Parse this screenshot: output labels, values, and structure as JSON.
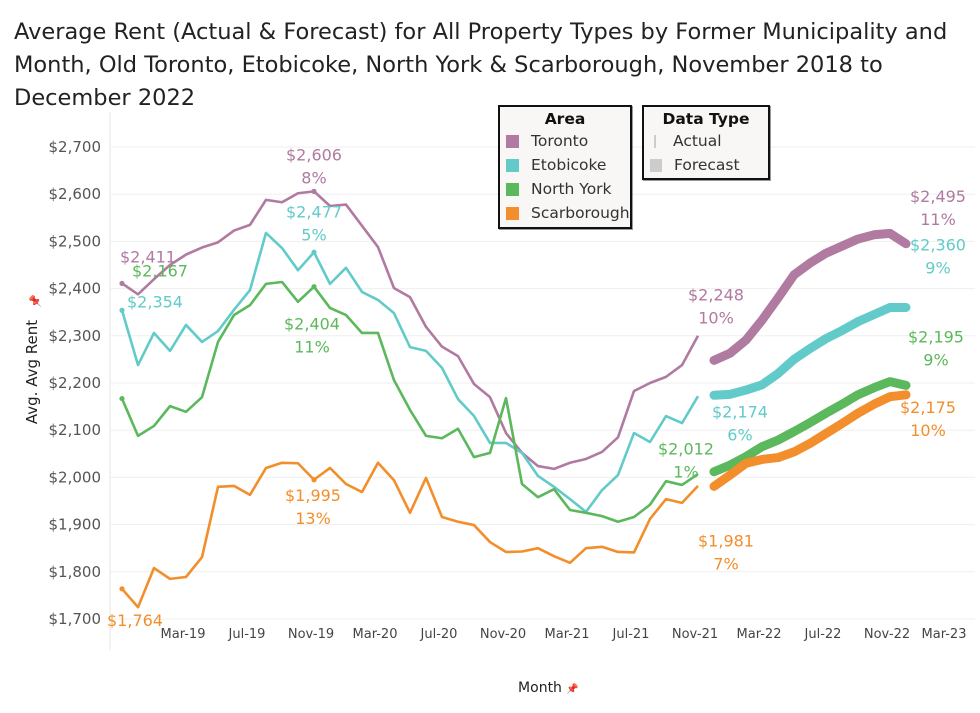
{
  "title": "Average Rent (Actual & Forecast) for All Property Types by Former Municipality and Month, Old Toronto, Etobicoke, North York & Scarborough, November 2018 to December 2022",
  "legend_area": {
    "title": "Area",
    "items": [
      {
        "label": "Toronto",
        "color": "#b07aa1"
      },
      {
        "label": "Etobicoke",
        "color": "#62cbc9"
      },
      {
        "label": "North York",
        "color": "#5cb85c"
      },
      {
        "label": "Scarborough",
        "color": "#f28e2b"
      }
    ]
  },
  "legend_type": {
    "title": "Data Type",
    "items": [
      {
        "label": "Actual",
        "icon": "thin-line-icon"
      },
      {
        "label": "Forecast",
        "icon": "thick-block-icon"
      }
    ]
  },
  "chart_data": {
    "type": "line",
    "title": "Average Rent (Actual & Forecast) for All Property Types by Former Municipality and Month, Old Toronto, Etobicoke, North York & Scarborough, November 2018 to December 2022",
    "xlabel": "Month",
    "ylabel": "Avg. Avg Rent",
    "ylim": [
      1700,
      2700
    ],
    "yticks": [
      "$1,700",
      "$1,800",
      "$1,900",
      "$2,000",
      "$2,100",
      "$2,200",
      "$2,300",
      "$2,400",
      "$2,500",
      "$2,600",
      "$2,700"
    ],
    "ytick_values": [
      1700,
      1800,
      1900,
      2000,
      2100,
      2200,
      2300,
      2400,
      2500,
      2600,
      2700
    ],
    "xticks": [
      "Mar-19",
      "Jul-19",
      "Nov-19",
      "Mar-20",
      "Jul-20",
      "Nov-20",
      "Mar-21",
      "Jul-21",
      "Nov-21",
      "Mar-22",
      "Jul-22",
      "Nov-22",
      "Mar-23"
    ],
    "x_start": "2018-11",
    "x_actual_end": "2021-11",
    "x_forecast_start": "2021-12",
    "x_end": "2022-12",
    "grid": "horizontal",
    "legend": "top-right",
    "series": [
      {
        "name": "Toronto",
        "color": "#b07aa1",
        "actual": [
          2411,
          2388,
          2420,
          2450,
          2472,
          2487,
          2498,
          2523,
          2535,
          2588,
          2583,
          2602,
          2606,
          2575,
          2578,
          2533,
          2488,
          2401,
          2382,
          2319,
          2277,
          2257,
          2198,
          2170,
          2094,
          2052,
          2024,
          2018,
          2031,
          2039,
          2054,
          2085,
          2183,
          2200,
          2213,
          2238,
          2300
        ],
        "forecast": [
          2248,
          2263,
          2291,
          2333,
          2380,
          2429,
          2454,
          2475,
          2490,
          2505,
          2514,
          2517,
          2495
        ]
      },
      {
        "name": "Etobicoke",
        "color": "#62cbc9",
        "actual": [
          2354,
          2238,
          2306,
          2268,
          2323,
          2287,
          2310,
          2355,
          2397,
          2518,
          2486,
          2439,
          2477,
          2410,
          2444,
          2393,
          2376,
          2348,
          2276,
          2268,
          2232,
          2166,
          2130,
          2073,
          2073,
          2052,
          2003,
          1980,
          1954,
          1927,
          1973,
          2005,
          2094,
          2075,
          2130,
          2115,
          2172
        ],
        "forecast": [
          2174,
          2176,
          2185,
          2196,
          2220,
          2250,
          2273,
          2294,
          2311,
          2330,
          2345,
          2360,
          2360
        ]
      },
      {
        "name": "North York",
        "color": "#5cb85c",
        "actual": [
          2167,
          2088,
          2109,
          2151,
          2139,
          2170,
          2287,
          2344,
          2365,
          2410,
          2414,
          2372,
          2404,
          2359,
          2344,
          2306,
          2306,
          2206,
          2143,
          2088,
          2083,
          2103,
          2043,
          2052,
          2168,
          1986,
          1958,
          1975,
          1931,
          1925,
          1918,
          1906,
          1916,
          1942,
          1992,
          1984,
          2007
        ],
        "forecast": [
          2012,
          2026,
          2044,
          2065,
          2079,
          2097,
          2116,
          2136,
          2155,
          2175,
          2190,
          2203,
          2195
        ]
      },
      {
        "name": "Scarborough",
        "color": "#f28e2b",
        "actual": [
          1764,
          1725,
          1808,
          1785,
          1789,
          1831,
          1980,
          1982,
          1963,
          2020,
          2031,
          2030,
          1995,
          2020,
          1986,
          1969,
          2031,
          1994,
          1925,
          1999,
          1916,
          1906,
          1899,
          1863,
          1842,
          1843,
          1850,
          1833,
          1819,
          1850,
          1853,
          1842,
          1841,
          1912,
          1954,
          1946,
          1982
        ],
        "forecast": [
          1981,
          2005,
          2030,
          2038,
          2042,
          2054,
          2072,
          2093,
          2114,
          2136,
          2155,
          2171,
          2175
        ]
      }
    ],
    "annotations": [
      {
        "series": 0,
        "month": "2018-11",
        "value": "$2,411",
        "pct": ""
      },
      {
        "series": 1,
        "month": "2018-11",
        "value": "$2,354",
        "pct": ""
      },
      {
        "series": 2,
        "month": "2018-11",
        "value": "$2,167",
        "pct": ""
      },
      {
        "series": 3,
        "month": "2018-11",
        "value": "$1,764",
        "pct": ""
      },
      {
        "series": 0,
        "month": "2019-11",
        "value": "$2,606",
        "pct": "8%"
      },
      {
        "series": 1,
        "month": "2019-11",
        "value": "$2,477",
        "pct": "5%"
      },
      {
        "series": 2,
        "month": "2019-11",
        "value": "$2,404",
        "pct": "11%"
      },
      {
        "series": 3,
        "month": "2019-11",
        "value": "$1,995",
        "pct": "13%"
      },
      {
        "series": 0,
        "month": "2021-12",
        "value": "$2,248",
        "pct": "10%"
      },
      {
        "series": 1,
        "month": "2021-12",
        "value": "$2,174",
        "pct": "6%"
      },
      {
        "series": 2,
        "month": "2021-12",
        "value": "$2,012",
        "pct": "1%"
      },
      {
        "series": 3,
        "month": "2021-12",
        "value": "$1,981",
        "pct": "7%"
      },
      {
        "series": 0,
        "month": "2022-12",
        "value": "$2,495",
        "pct": "11%"
      },
      {
        "series": 1,
        "month": "2022-12",
        "value": "$2,360",
        "pct": "9%"
      },
      {
        "series": 2,
        "month": "2022-12",
        "value": "$2,195",
        "pct": "9%"
      },
      {
        "series": 3,
        "month": "2022-12",
        "value": "$2,175",
        "pct": "10%"
      }
    ]
  }
}
